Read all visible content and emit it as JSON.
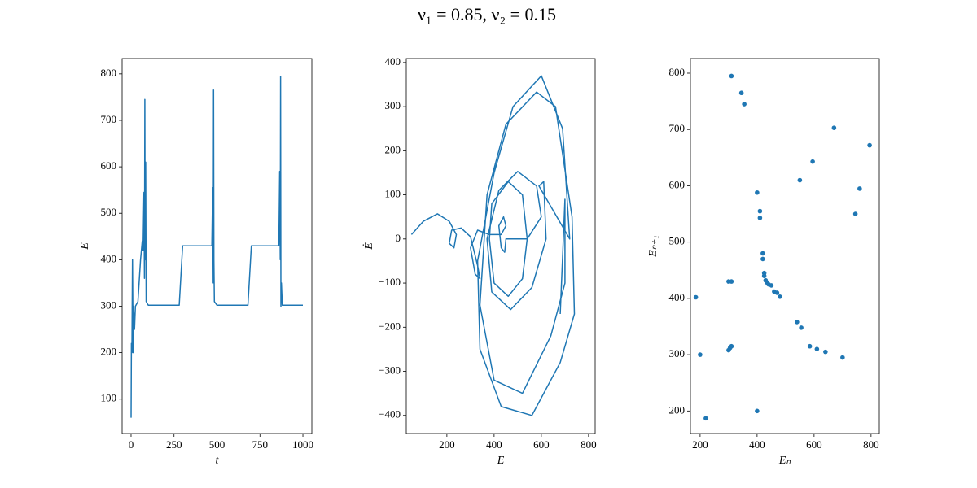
{
  "title": "ν₁ = 0.85, ν₂ = 0.15",
  "chart_data": [
    {
      "type": "line",
      "x_label": "t",
      "y_label": "E",
      "color": "#1f77b4",
      "x": [
        0,
        2,
        5,
        8,
        12,
        15,
        20,
        25,
        40,
        55,
        65,
        70,
        75,
        78,
        80,
        82,
        85,
        88,
        100,
        280,
        300,
        470,
        475,
        478,
        480,
        482,
        485,
        500,
        680,
        700,
        860,
        865,
        868,
        870,
        872,
        875,
        880,
        1000
      ],
      "values": [
        60,
        220,
        200,
        400,
        200,
        300,
        250,
        300,
        310,
        400,
        440,
        420,
        545,
        360,
        745,
        400,
        610,
        310,
        302,
        302,
        430,
        430,
        555,
        350,
        765,
        400,
        310,
        302,
        302,
        430,
        430,
        590,
        400,
        795,
        300,
        350,
        302,
        302
      ],
      "xlim": [
        -52,
        1052
      ],
      "ylim": [
        26,
        833
      ],
      "xticks": [
        0,
        250,
        500,
        750,
        1000
      ],
      "yticks": [
        100,
        200,
        300,
        400,
        500,
        600,
        700,
        800
      ]
    },
    {
      "type": "line",
      "x_label": "E",
      "y_label": "Ė",
      "color": "#1f77b4",
      "x": [
        50,
        100,
        160,
        210,
        240,
        230,
        210,
        220,
        260,
        300,
        330,
        340,
        320,
        300,
        330,
        380,
        430,
        450,
        440,
        420,
        430,
        445,
        450,
        540,
        520,
        460,
        390,
        380,
        400,
        460,
        520,
        540,
        600,
        580,
        500,
        420,
        370,
        390,
        470,
        560,
        620,
        610,
        590,
        720,
        690,
        600,
        480,
        400,
        330,
        340,
        430,
        560,
        680,
        740,
        730,
        660,
        580,
        450,
        370,
        340,
        400,
        520,
        640,
        700,
        700,
        680
      ],
      "values": [
        10,
        40,
        57,
        40,
        10,
        -20,
        -10,
        20,
        25,
        5,
        -60,
        -90,
        -80,
        -20,
        20,
        10,
        10,
        30,
        50,
        30,
        -20,
        -30,
        0,
        0,
        100,
        130,
        80,
        0,
        -100,
        -130,
        -90,
        0,
        50,
        120,
        153,
        110,
        0,
        -120,
        -160,
        -110,
        0,
        130,
        120,
        0,
        250,
        370,
        300,
        150,
        -50,
        -250,
        -380,
        -400,
        -280,
        -170,
        50,
        300,
        333,
        260,
        100,
        -150,
        -320,
        -350,
        -220,
        -100,
        90,
        -170
      ],
      "xlim": [
        28,
        828
      ],
      "ylim": [
        -441,
        409
      ],
      "xticks": [
        200,
        400,
        600,
        800
      ],
      "yticks": [
        {
          "value": -400,
          "label": "−400"
        },
        {
          "value": -300,
          "label": "−300"
        },
        {
          "value": -200,
          "label": "−200"
        },
        {
          "value": -100,
          "label": "−100"
        },
        0,
        100,
        200,
        300,
        400
      ]
    },
    {
      "type": "scatter",
      "x_label": "Eₙ",
      "y_label": "Eₙ₊₁",
      "color": "#1f77b4",
      "x": [
        310,
        345,
        355,
        670,
        595,
        550,
        400,
        410,
        410,
        760,
        745,
        795,
        185,
        200,
        220,
        400,
        300,
        310,
        420,
        420,
        425,
        425,
        430,
        435,
        440,
        450,
        460,
        470,
        480,
        540,
        555,
        585,
        610,
        640,
        700,
        300,
        305,
        310
      ],
      "values": [
        795,
        765,
        745,
        703,
        643,
        610,
        588,
        555,
        543,
        595,
        550,
        672,
        402,
        300,
        187,
        200,
        430,
        430,
        480,
        470,
        445,
        440,
        432,
        428,
        425,
        423,
        412,
        410,
        403,
        358,
        348,
        315,
        310,
        305,
        295,
        308,
        312,
        315
      ],
      "xlim": [
        166,
        829
      ],
      "ylim": [
        160,
        826
      ],
      "xticks": [
        200,
        400,
        600,
        800
      ],
      "yticks": [
        200,
        300,
        400,
        500,
        600,
        700,
        800
      ]
    }
  ]
}
